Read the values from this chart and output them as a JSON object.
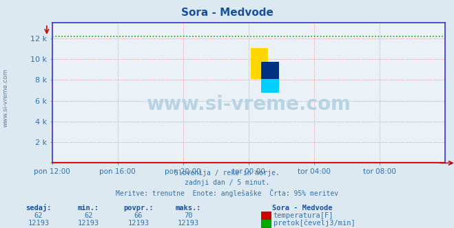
{
  "title": "Sora - Medvode",
  "background_color": "#dce9f0",
  "plot_bg_color": "#eaf2f8",
  "x_labels": [
    "pon 12:00",
    "pon 16:00",
    "pon 20:00",
    "tor 00:00",
    "tor 04:00",
    "tor 08:00"
  ],
  "x_ticks": [
    0,
    48,
    96,
    144,
    192,
    240
  ],
  "x_max": 288,
  "y_ticks": [
    0,
    2000,
    4000,
    6000,
    8000,
    10000,
    12000
  ],
  "y_labels": [
    "",
    "2 k",
    "4 k",
    "6 k",
    "8 k",
    "10 k",
    "12 k"
  ],
  "y_min": 0,
  "y_max": 13500,
  "temp_value": 62,
  "temp_min": 62,
  "temp_avg": 66,
  "temp_max": 70,
  "flow_value": 12193,
  "flow_min": 12193,
  "flow_avg": 12193,
  "flow_max": 12193,
  "temp_color": "#cc0000",
  "flow_color": "#00aa00",
  "axis_color": "#3333cc",
  "arrow_color": "#cc0000",
  "grid_color": "#e08080",
  "subtitle_lines": [
    "Slovenija / reke in morje.",
    "zadnji dan / 5 minut.",
    "Meritve: trenutne  Enote: anglešaške  Črta: 95% meritev"
  ],
  "watermark": "www.si-vreme.com",
  "watermark_color": "#b8d4e4",
  "sidebar_text": "www.si-vreme.com",
  "sidebar_color": "#6080a0",
  "title_color": "#1a50a0",
  "subtitle_color": "#3070b0",
  "table_header_color": "#1a50a0",
  "table_value_color": "#3070b0",
  "logo_yellow": "#FFD700",
  "logo_cyan": "#00CFFF",
  "logo_darkblue": "#003080"
}
